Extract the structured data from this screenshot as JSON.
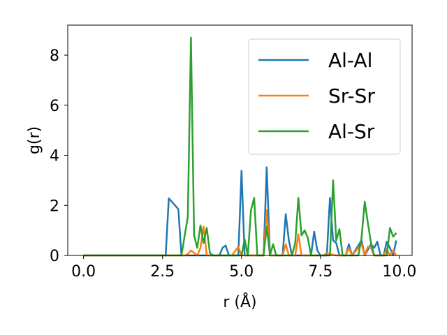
{
  "chart_data": {
    "type": "line",
    "title": "",
    "xlabel": "r (Å)",
    "ylabel": "g(r)",
    "xlim": [
      -0.5,
      10.4
    ],
    "ylim": [
      0,
      9.2
    ],
    "xticks": [
      0.0,
      2.5,
      5.0,
      7.5,
      10.0
    ],
    "xtick_labels": [
      "0.0",
      "2.5",
      "5.0",
      "7.5",
      "10.0"
    ],
    "yticks": [
      0,
      2,
      4,
      6,
      8
    ],
    "ytick_labels": [
      "0",
      "2",
      "4",
      "6",
      "8"
    ],
    "grid": false,
    "legend_position": "top-right",
    "series": [
      {
        "name": "Al-Al",
        "color": "#1f77b4",
        "points": [
          [
            0.0,
            0
          ],
          [
            2.6,
            0
          ],
          [
            2.7,
            2.28
          ],
          [
            3.0,
            1.85
          ],
          [
            3.1,
            0
          ],
          [
            4.3,
            0
          ],
          [
            4.4,
            0.3
          ],
          [
            4.5,
            0.4
          ],
          [
            4.6,
            0
          ],
          [
            4.9,
            0
          ],
          [
            5.0,
            3.38
          ],
          [
            5.1,
            0
          ],
          [
            5.7,
            0
          ],
          [
            5.8,
            3.52
          ],
          [
            5.9,
            0
          ],
          [
            6.3,
            0
          ],
          [
            6.4,
            1.65
          ],
          [
            6.5,
            0.6
          ],
          [
            6.6,
            0
          ],
          [
            7.2,
            0
          ],
          [
            7.3,
            0.95
          ],
          [
            7.4,
            0.2
          ],
          [
            7.5,
            0
          ],
          [
            7.7,
            0
          ],
          [
            7.8,
            2.3
          ],
          [
            7.9,
            0.6
          ],
          [
            8.0,
            0.5
          ],
          [
            8.1,
            0
          ],
          [
            8.3,
            0
          ],
          [
            8.4,
            0.45
          ],
          [
            8.5,
            0
          ],
          [
            8.7,
            0.4
          ],
          [
            8.8,
            0.6
          ],
          [
            8.9,
            0
          ],
          [
            9.1,
            0.45
          ],
          [
            9.2,
            0.3
          ],
          [
            9.3,
            0.55
          ],
          [
            9.4,
            0
          ],
          [
            9.5,
            0
          ],
          [
            9.6,
            0.55
          ],
          [
            9.7,
            0.3
          ],
          [
            9.8,
            0
          ],
          [
            9.9,
            0.6
          ]
        ]
      },
      {
        "name": "Sr-Sr",
        "color": "#ff7f0e",
        "points": [
          [
            0.0,
            0
          ],
          [
            3.2,
            0
          ],
          [
            3.3,
            0.05
          ],
          [
            3.4,
            0.2
          ],
          [
            3.5,
            0.1
          ],
          [
            3.6,
            0
          ],
          [
            3.7,
            0.3
          ],
          [
            3.8,
            1.15
          ],
          [
            3.9,
            0
          ],
          [
            4.7,
            0
          ],
          [
            4.9,
            0.35
          ],
          [
            5.0,
            0
          ],
          [
            5.7,
            0
          ],
          [
            5.8,
            1.8
          ],
          [
            5.9,
            0
          ],
          [
            6.3,
            0
          ],
          [
            6.4,
            0.45
          ],
          [
            6.5,
            0
          ],
          [
            6.7,
            0
          ],
          [
            6.8,
            0.85
          ],
          [
            6.9,
            0
          ],
          [
            7.6,
            0
          ],
          [
            7.7,
            0.1
          ],
          [
            7.8,
            0.05
          ],
          [
            8.0,
            0
          ],
          [
            8.3,
            0
          ],
          [
            8.4,
            0.3
          ],
          [
            8.5,
            0
          ],
          [
            8.7,
            0.3
          ],
          [
            8.8,
            0.45
          ],
          [
            8.9,
            0
          ],
          [
            9.0,
            0.35
          ],
          [
            9.1,
            0.3
          ],
          [
            9.2,
            0
          ],
          [
            9.5,
            0
          ],
          [
            9.6,
            0.25
          ],
          [
            9.7,
            0
          ],
          [
            9.8,
            0.2
          ],
          [
            9.9,
            0
          ]
        ]
      },
      {
        "name": "Al-Sr",
        "color": "#2ca02c",
        "points": [
          [
            0.0,
            0
          ],
          [
            3.1,
            0
          ],
          [
            3.3,
            1.55
          ],
          [
            3.4,
            8.7
          ],
          [
            3.5,
            0.8
          ],
          [
            3.6,
            0.3
          ],
          [
            3.7,
            1.2
          ],
          [
            3.8,
            0.5
          ],
          [
            3.9,
            1.1
          ],
          [
            4.0,
            0.1
          ],
          [
            4.1,
            0
          ],
          [
            5.0,
            0
          ],
          [
            5.1,
            0.65
          ],
          [
            5.2,
            0
          ],
          [
            5.3,
            1.8
          ],
          [
            5.4,
            2.3
          ],
          [
            5.5,
            0
          ],
          [
            5.7,
            0
          ],
          [
            5.8,
            1.15
          ],
          [
            5.9,
            0
          ],
          [
            6.0,
            0.45
          ],
          [
            6.1,
            0
          ],
          [
            6.6,
            0
          ],
          [
            6.7,
            0.5
          ],
          [
            6.8,
            2.3
          ],
          [
            6.9,
            0.8
          ],
          [
            7.0,
            1.0
          ],
          [
            7.1,
            0.7
          ],
          [
            7.2,
            0
          ],
          [
            7.8,
            0
          ],
          [
            7.9,
            3.0
          ],
          [
            8.0,
            0.6
          ],
          [
            8.1,
            1.05
          ],
          [
            8.2,
            0
          ],
          [
            8.7,
            0
          ],
          [
            8.8,
            0.7
          ],
          [
            8.9,
            2.15
          ],
          [
            9.0,
            1.3
          ],
          [
            9.1,
            0.5
          ],
          [
            9.2,
            0
          ],
          [
            9.6,
            0
          ],
          [
            9.7,
            1.1
          ],
          [
            9.8,
            0.75
          ],
          [
            9.9,
            0.9
          ]
        ]
      }
    ]
  }
}
